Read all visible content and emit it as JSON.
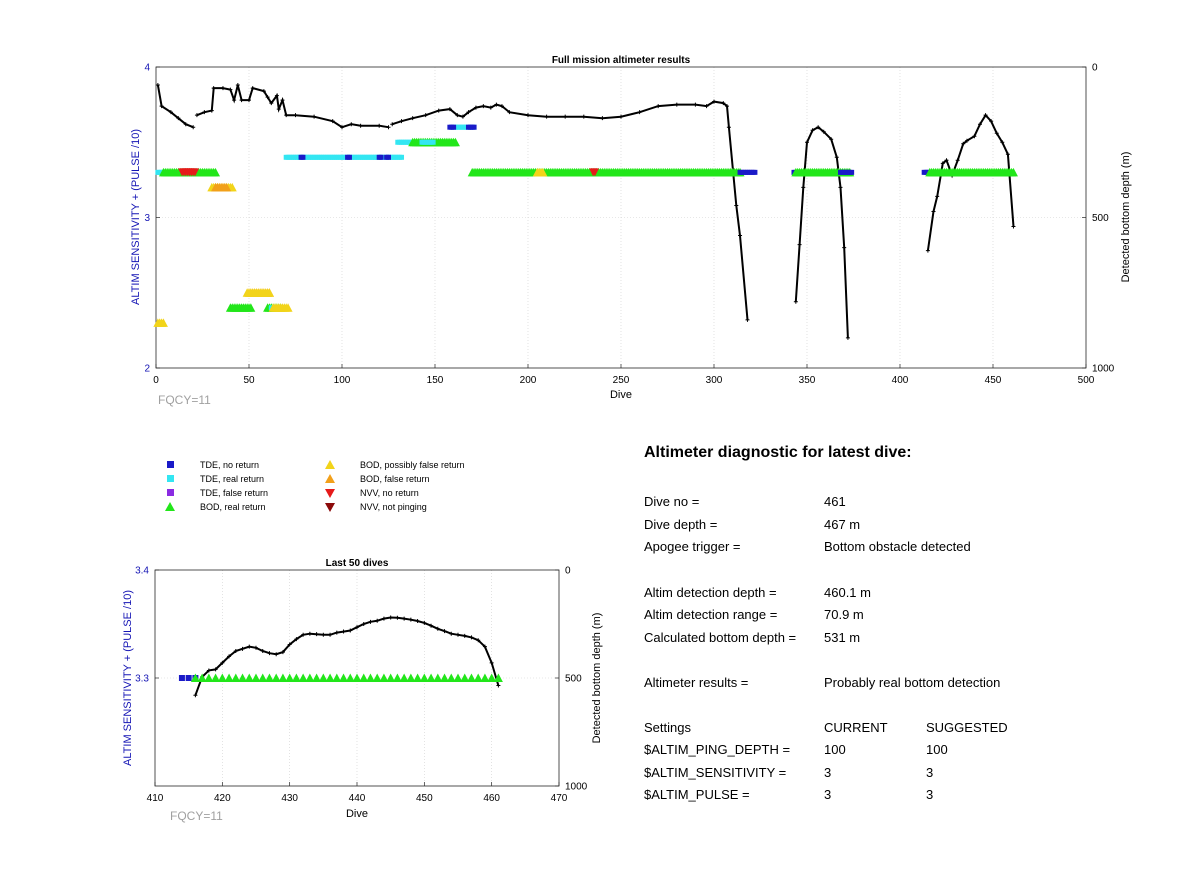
{
  "colors": {
    "tde_no_return": "#1a1ac8",
    "tde_real_return": "#33e6f2",
    "tde_false_return": "#8a2be2",
    "bod_real_return": "#22e61a",
    "bod_possibly_false": "#f2d41a",
    "bod_false": "#f2a01a",
    "nvv_no_return": "#e61a1a",
    "nvv_not_pinging": "#8b0a0a",
    "left_axis": "#1414b4",
    "fqcy": "#a0a0a0",
    "depth_line": "#000000"
  },
  "legend": [
    {
      "label": "TDE, no return",
      "icon": "square",
      "color": "#1a1ac8"
    },
    {
      "label": "TDE, real return",
      "icon": "square",
      "color": "#33e6f2"
    },
    {
      "label": "TDE, false return",
      "icon": "square",
      "color": "#8a2be2"
    },
    {
      "label": "BOD, real return",
      "icon": "triangle-up",
      "color": "#22e61a"
    },
    {
      "label": "BOD, possibly false return",
      "icon": "triangle-up",
      "color": "#f2d41a"
    },
    {
      "label": "BOD, false return",
      "icon": "triangle-up",
      "color": "#f2a01a"
    },
    {
      "label": "NVV, no return",
      "icon": "triangle-down",
      "color": "#e61a1a"
    },
    {
      "label": "NVV, not pinging",
      "icon": "triangle-down",
      "color": "#8b0a0a"
    }
  ],
  "diagnostic": {
    "title": "Altimeter diagnostic for latest dive:",
    "dive_no_label": "Dive no =",
    "dive_no": "461",
    "dive_depth_label": "Dive depth =",
    "dive_depth": "467 m",
    "apogee_label": "Apogee trigger =",
    "apogee": "Bottom obstacle detected",
    "detect_depth_label": "Altim detection depth =",
    "detect_depth": "460.1 m",
    "detect_range_label": "Altim detection range =",
    "detect_range": "70.9 m",
    "calc_depth_label": "Calculated bottom depth =",
    "calc_depth": "531 m",
    "results_label": "Altimeter results =",
    "results": "Probably real bottom detection",
    "settings_label": "Settings",
    "current_label": "CURRENT",
    "suggested_label": "SUGGESTED",
    "settings": [
      {
        "name": "$ALTIM_PING_DEPTH =",
        "current": "100",
        "suggested": "100"
      },
      {
        "name": "$ALTIM_SENSITIVITY =",
        "current": "3",
        "suggested": "3"
      },
      {
        "name": "$ALTIM_PULSE =",
        "current": "3",
        "suggested": "3"
      }
    ]
  },
  "chart_data": [
    {
      "type": "scatter",
      "title": "Full mission altimeter results",
      "xlabel": "Dive",
      "ylabel": "ALTIM SENSITIVITY + (PULSE /10)",
      "y2label": "Detected bottom depth (m)",
      "note": "FQCY=11",
      "xlim": [
        0,
        500
      ],
      "ylim": [
        2,
        4
      ],
      "y2lim": [
        0,
        1000
      ],
      "y2_reversed": true,
      "xticks": [
        "0",
        "50",
        "100",
        "150",
        "200",
        "250",
        "300",
        "350",
        "400",
        "450",
        "500"
      ],
      "yticks": [
        "2",
        "3",
        "4"
      ],
      "y2ticks": [
        "0",
        "500",
        "1000"
      ],
      "gridlines": "dotted",
      "markers": [
        {
          "kind": "tde_real_return",
          "x_from": 1,
          "x_to": 6,
          "y": 3.3
        },
        {
          "kind": "bod_real_return",
          "x_from": 4,
          "x_to": 32,
          "y": 3.3
        },
        {
          "kind": "nvv_no_return",
          "x_from": 14,
          "x_to": 21,
          "y": 3.3
        },
        {
          "kind": "bod_possibly_false",
          "x_from": 30,
          "x_to": 41,
          "y": 3.2
        },
        {
          "kind": "bod_false",
          "x_from": 32,
          "x_to": 38,
          "y": 3.2
        },
        {
          "kind": "bod_possibly_false",
          "x_from": 1,
          "x_to": 4,
          "y": 2.3
        },
        {
          "kind": "bod_false",
          "x_from": 50,
          "x_to": 61,
          "y": 2.5
        },
        {
          "kind": "bod_possibly_false",
          "x_from": 49,
          "x_to": 61,
          "y": 2.5
        },
        {
          "kind": "bod_real_return",
          "x_from": 40,
          "x_to": 51,
          "y": 2.4
        },
        {
          "kind": "bod_real_return",
          "x_from": 60,
          "x_to": 67,
          "y": 2.4
        },
        {
          "kind": "tde_real_return",
          "x_from": 62,
          "x_to": 68,
          "y": 2.4
        },
        {
          "kind": "bod_possibly_false",
          "x_from": 63,
          "x_to": 71,
          "y": 2.4
        },
        {
          "kind": "tde_real_return",
          "x_from": 70,
          "x_to": 132,
          "y": 3.4
        },
        {
          "kind": "tde_no_return",
          "x_from": 78,
          "x_to": 79,
          "y": 3.4
        },
        {
          "kind": "tde_no_return",
          "x_from": 103,
          "x_to": 104,
          "y": 3.4
        },
        {
          "kind": "tde_no_return",
          "x_from": 120,
          "x_to": 121,
          "y": 3.4
        },
        {
          "kind": "tde_no_return",
          "x_from": 124,
          "x_to": 125,
          "y": 3.4
        },
        {
          "kind": "tde_real_return",
          "x_from": 130,
          "x_to": 142,
          "y": 3.5
        },
        {
          "kind": "bod_real_return",
          "x_from": 138,
          "x_to": 161,
          "y": 3.5
        },
        {
          "kind": "tde_real_return",
          "x_from": 143,
          "x_to": 149,
          "y": 3.5
        },
        {
          "kind": "tde_real_return",
          "x_from": 159,
          "x_to": 171,
          "y": 3.6
        },
        {
          "kind": "tde_no_return",
          "x_from": 158,
          "x_to": 160,
          "y": 3.6
        },
        {
          "kind": "tde_no_return",
          "x_from": 168,
          "x_to": 171,
          "y": 3.6
        },
        {
          "kind": "bod_real_return",
          "x_from": 170,
          "x_to": 314,
          "y": 3.3
        },
        {
          "kind": "bod_possibly_false",
          "x_from": 205,
          "x_to": 208,
          "y": 3.3
        },
        {
          "kind": "nvv_no_return",
          "x_from": 235,
          "x_to": 236,
          "y": 3.3
        },
        {
          "kind": "tde_no_return",
          "x_from": 314,
          "x_to": 322,
          "y": 3.3
        },
        {
          "kind": "tde_no_return",
          "x_from": 343,
          "x_to": 345,
          "y": 3.3
        },
        {
          "kind": "bod_real_return",
          "x_from": 344,
          "x_to": 373,
          "y": 3.3
        },
        {
          "kind": "tde_no_return",
          "x_from": 368,
          "x_to": 374,
          "y": 3.3
        },
        {
          "kind": "tde_no_return",
          "x_from": 413,
          "x_to": 416,
          "y": 3.3
        },
        {
          "kind": "bod_real_return",
          "x_from": 416,
          "x_to": 461,
          "y": 3.3
        }
      ],
      "depth_segments": [
        [
          [
            1,
            60
          ],
          [
            3,
            130
          ],
          [
            8,
            150
          ],
          [
            12,
            170
          ],
          [
            16,
            190
          ],
          [
            20,
            200
          ]
        ],
        [
          [
            22,
            160
          ],
          [
            26,
            150
          ],
          [
            30,
            145
          ],
          [
            31,
            70
          ],
          [
            36,
            70
          ],
          [
            40,
            75
          ],
          [
            42,
            110
          ],
          [
            44,
            60
          ],
          [
            46,
            110
          ],
          [
            50,
            110
          ],
          [
            52,
            70
          ],
          [
            58,
            80
          ],
          [
            60,
            100
          ],
          [
            62,
            120
          ],
          [
            65,
            95
          ],
          [
            66,
            140
          ],
          [
            68,
            110
          ],
          [
            70,
            160
          ],
          [
            75,
            160
          ],
          [
            85,
            165
          ],
          [
            95,
            180
          ],
          [
            100,
            200
          ],
          [
            105,
            190
          ],
          [
            110,
            195
          ],
          [
            120,
            195
          ],
          [
            125,
            200
          ]
        ],
        [
          [
            127,
            190
          ],
          [
            132,
            180
          ],
          [
            138,
            170
          ],
          [
            145,
            160
          ],
          [
            152,
            145
          ],
          [
            158,
            140
          ],
          [
            162,
            160
          ],
          [
            165,
            165
          ],
          [
            168,
            150
          ],
          [
            172,
            135
          ],
          [
            176,
            130
          ],
          [
            180,
            135
          ],
          [
            183,
            125
          ],
          [
            186,
            130
          ],
          [
            190,
            150
          ],
          [
            200,
            160
          ],
          [
            210,
            165
          ],
          [
            220,
            165
          ],
          [
            230,
            165
          ],
          [
            240,
            170
          ],
          [
            250,
            165
          ],
          [
            260,
            150
          ],
          [
            270,
            130
          ],
          [
            280,
            125
          ],
          [
            290,
            125
          ],
          [
            296,
            130
          ],
          [
            300,
            115
          ],
          [
            305,
            120
          ],
          [
            307,
            130
          ],
          [
            308,
            200
          ],
          [
            312,
            460
          ],
          [
            314,
            560
          ],
          [
            318,
            840
          ]
        ],
        [
          [
            344,
            780
          ],
          [
            346,
            590
          ],
          [
            348,
            400
          ],
          [
            350,
            250
          ],
          [
            353,
            210
          ],
          [
            356,
            200
          ],
          [
            359,
            215
          ],
          [
            363,
            240
          ],
          [
            366,
            300
          ],
          [
            368,
            400
          ],
          [
            370,
            600
          ],
          [
            372,
            900
          ]
        ],
        [
          [
            415,
            610
          ],
          [
            418,
            480
          ],
          [
            420,
            430
          ],
          [
            423,
            320
          ],
          [
            425,
            310
          ],
          [
            428,
            360
          ],
          [
            431,
            310
          ],
          [
            434,
            255
          ],
          [
            436,
            245
          ],
          [
            440,
            230
          ],
          [
            443,
            190
          ],
          [
            446,
            160
          ],
          [
            449,
            180
          ],
          [
            452,
            220
          ],
          [
            455,
            250
          ],
          [
            458,
            290
          ],
          [
            461,
            530
          ]
        ]
      ]
    },
    {
      "type": "scatter",
      "title": "Last 50 dives",
      "xlabel": "Dive",
      "ylabel": "ALTIM SENSITIVITY + (PULSE /10)",
      "y2label": "Detected bottom depth (m)",
      "note": "FQCY=11",
      "xlim": [
        410,
        470
      ],
      "ylim": [
        3.2,
        3.4
      ],
      "y2lim": [
        0,
        1000
      ],
      "y2_reversed": true,
      "xticks": [
        "410",
        "420",
        "430",
        "440",
        "450",
        "460",
        "470"
      ],
      "yticks": [
        "3.3",
        "3.4"
      ],
      "y2ticks": [
        "0",
        "500",
        "1000"
      ],
      "gridlines": "dotted",
      "markers": [
        {
          "kind": "tde_no_return",
          "x_from": 414,
          "x_to": 416,
          "y": 3.3
        },
        {
          "kind": "bod_real_return",
          "x_from": 416,
          "x_to": 461,
          "y": 3.3
        }
      ],
      "depth_segments": [
        [
          [
            416,
            580
          ],
          [
            417,
            495
          ],
          [
            418,
            465
          ],
          [
            419,
            460
          ],
          [
            420,
            430
          ],
          [
            421,
            400
          ],
          [
            422,
            375
          ],
          [
            423,
            365
          ],
          [
            424,
            355
          ],
          [
            425,
            360
          ],
          [
            426,
            375
          ],
          [
            427,
            385
          ],
          [
            428,
            390
          ],
          [
            429,
            380
          ],
          [
            430,
            345
          ],
          [
            431,
            320
          ],
          [
            432,
            300
          ],
          [
            433,
            295
          ],
          [
            434,
            297
          ],
          [
            435,
            300
          ],
          [
            436,
            300
          ],
          [
            437,
            290
          ],
          [
            438,
            285
          ],
          [
            439,
            280
          ],
          [
            440,
            265
          ],
          [
            441,
            250
          ],
          [
            442,
            240
          ],
          [
            443,
            235
          ],
          [
            444,
            225
          ],
          [
            445,
            220
          ],
          [
            446,
            221
          ],
          [
            447,
            225
          ],
          [
            448,
            230
          ],
          [
            449,
            236
          ],
          [
            450,
            245
          ],
          [
            451,
            258
          ],
          [
            452,
            272
          ],
          [
            453,
            283
          ],
          [
            454,
            295
          ],
          [
            455,
            300
          ],
          [
            456,
            305
          ],
          [
            457,
            312
          ],
          [
            458,
            325
          ],
          [
            459,
            355
          ],
          [
            460,
            430
          ],
          [
            461,
            535
          ]
        ]
      ]
    }
  ]
}
